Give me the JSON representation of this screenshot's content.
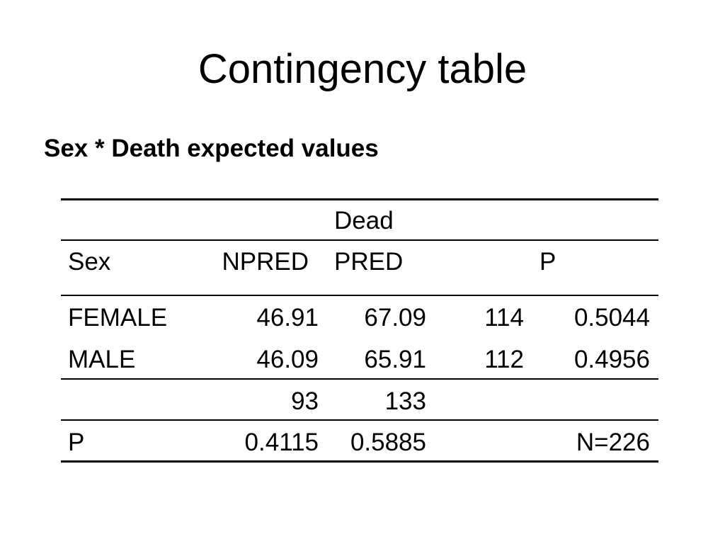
{
  "slide": {
    "title": "Contingency table",
    "subtitle": "Sex * Death expected values"
  },
  "table": {
    "group_header": "Dead",
    "headers": {
      "row_label": "Sex",
      "col1": "NPRED",
      "col2": "PRED",
      "col3": "P"
    },
    "rows": [
      {
        "label": "FEMALE",
        "npred": "46.91",
        "pred": "67.09",
        "total": "114",
        "p": "0.5044"
      },
      {
        "label": "MALE",
        "npred": "46.09",
        "pred": "65.91",
        "total": "112",
        "p": "0.4956"
      }
    ],
    "totals": {
      "npred": "93",
      "pred": "133"
    },
    "p_row": {
      "label": "P",
      "npred": "0.4115",
      "pred": "0.5885",
      "n": "N=226"
    }
  }
}
